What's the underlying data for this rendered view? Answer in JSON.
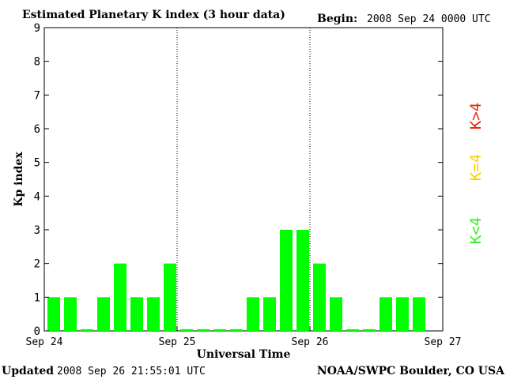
{
  "chart_data": {
    "type": "bar",
    "title": "Estimated Planetary K index (3 hour data)",
    "begin_label": "Begin:",
    "begin_value": "2008 Sep 24 0000 UTC",
    "ylabel": "Kp index",
    "xlabel": "Universal Time",
    "ylim": [
      0,
      9
    ],
    "y_ticks": [
      0,
      1,
      2,
      3,
      4,
      5,
      6,
      7,
      8,
      9
    ],
    "x_ticks": [
      "Sep 24",
      "Sep 25",
      "Sep 26",
      "Sep 27"
    ],
    "x_days": 3,
    "bars_per_day": 8,
    "values": [
      1,
      1,
      0.05,
      1,
      2,
      1,
      1,
      2,
      0.05,
      0.05,
      0.05,
      0.05,
      1,
      1,
      3,
      3,
      2,
      1,
      0.05,
      0.05,
      1,
      1,
      1
    ],
    "bar_color": "#00ff00",
    "day_separators": true,
    "legend": [
      {
        "label": "K<4",
        "color": "#33ee22"
      },
      {
        "label": "K=4",
        "color": "#ffcc00"
      },
      {
        "label": "K>4",
        "color": "#ee2200"
      }
    ],
    "legend_placement": "right"
  },
  "footer": {
    "updated_label": "Updated",
    "updated_value": "2008 Sep 26 21:55:01 UTC",
    "credit": "NOAA/SWPC Boulder, CO USA"
  }
}
